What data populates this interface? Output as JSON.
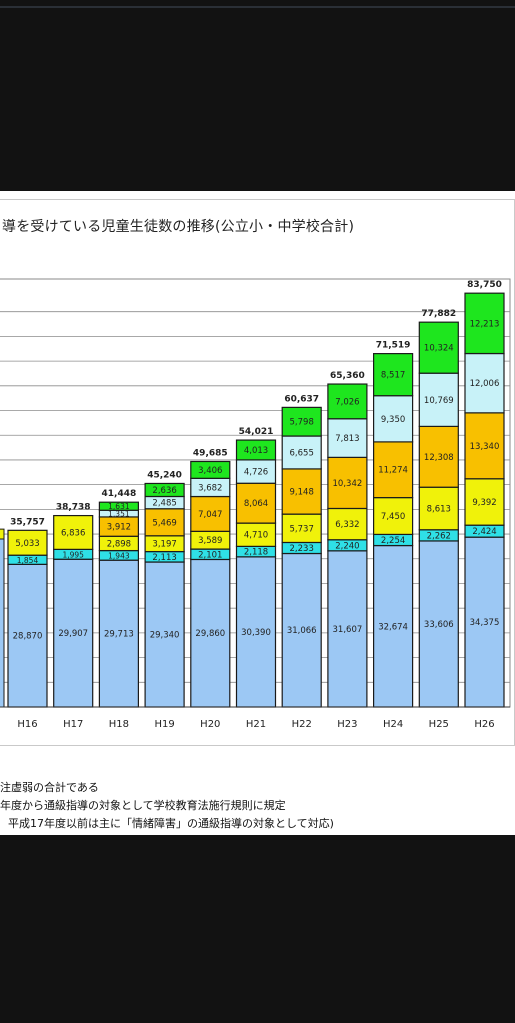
{
  "chart_data": {
    "type": "bar",
    "stacked": true,
    "title": "導を受けている児童生徒数の推移(公立小・中学校合計)",
    "categories": [
      "H16",
      "H17",
      "H18",
      "H19",
      "H20",
      "H21",
      "H22",
      "H23",
      "H24",
      "H25",
      "H26"
    ],
    "totals": [
      35757,
      38738,
      41448,
      45240,
      49685,
      54021,
      60637,
      65360,
      71519,
      77882,
      83750
    ],
    "total_labels": [
      "35,757",
      "38,738",
      "41,448",
      "45,240",
      "49,685",
      "54,021",
      "60,637",
      "65,360",
      "71,519",
      "77,882",
      "83,750"
    ],
    "series": [
      {
        "color": "#9cc8f4",
        "values": [
          28870,
          29907,
          29713,
          29340,
          29860,
          30390,
          31066,
          31607,
          32674,
          33606,
          34375
        ],
        "labels": [
          "28,870",
          "29,907",
          "29,713",
          "29,340",
          "29,860",
          "30,390",
          "31,066",
          "31,607",
          "32,674",
          "33,606",
          "34,375"
        ]
      },
      {
        "color": "#2fe0e6",
        "values": [
          1854,
          1995,
          1943,
          2113,
          2101,
          2118,
          2233,
          2240,
          2254,
          2262,
          2424
        ],
        "labels": [
          "1,854",
          "1,995",
          "1,943",
          "2,113",
          "2,101",
          "2,118",
          "2,233",
          "2,240",
          "2,254",
          "2,262",
          "2,424"
        ]
      },
      {
        "color": "#f0f20a",
        "values": [
          5033,
          6836,
          2898,
          3197,
          3589,
          4710,
          5737,
          6332,
          7450,
          8613,
          9392
        ],
        "labels": [
          "5,033",
          "6,836",
          "2,898",
          "3,197",
          "3,589",
          "4,710",
          "5,737",
          "6,332",
          "7,450",
          "8,613",
          "9,392"
        ]
      },
      {
        "color": "#f8c000",
        "values": [
          0,
          0,
          3912,
          5469,
          7047,
          8064,
          9148,
          10342,
          11274,
          12308,
          13340
        ],
        "labels": [
          "",
          "",
          "3,912",
          "5,469",
          "7,047",
          "8,064",
          "9,148",
          "10,342",
          "11,274",
          "12,308",
          "13,340"
        ]
      },
      {
        "color": "#c8f2f8",
        "values": [
          0,
          0,
          1351,
          2485,
          3682,
          4726,
          6655,
          7813,
          9350,
          10769,
          12006
        ],
        "labels": [
          "",
          "",
          "1,351",
          "2,485",
          "3,682",
          "4,726",
          "6,655",
          "7,813",
          "9,350",
          "10,769",
          "12,006"
        ]
      },
      {
        "color": "#1ee61e",
        "values": [
          0,
          0,
          1631,
          2636,
          3406,
          4013,
          5798,
          7026,
          8517,
          10324,
          12213
        ],
        "labels": [
          "",
          "",
          "1,631",
          "2,636",
          "3,406",
          "4,013",
          "5,798",
          "7,026",
          "8,517",
          "10,324",
          "12,213"
        ]
      }
    ],
    "ylim": [
      0,
      85000
    ],
    "grid": true
  },
  "notes": [
    "注虚弱の合計である",
    "年度から通級指導の対象として学校教育法施行規則に規定",
    "平成17年度以前は主に「情緒障害」の通級指導の対象として対応)"
  ]
}
